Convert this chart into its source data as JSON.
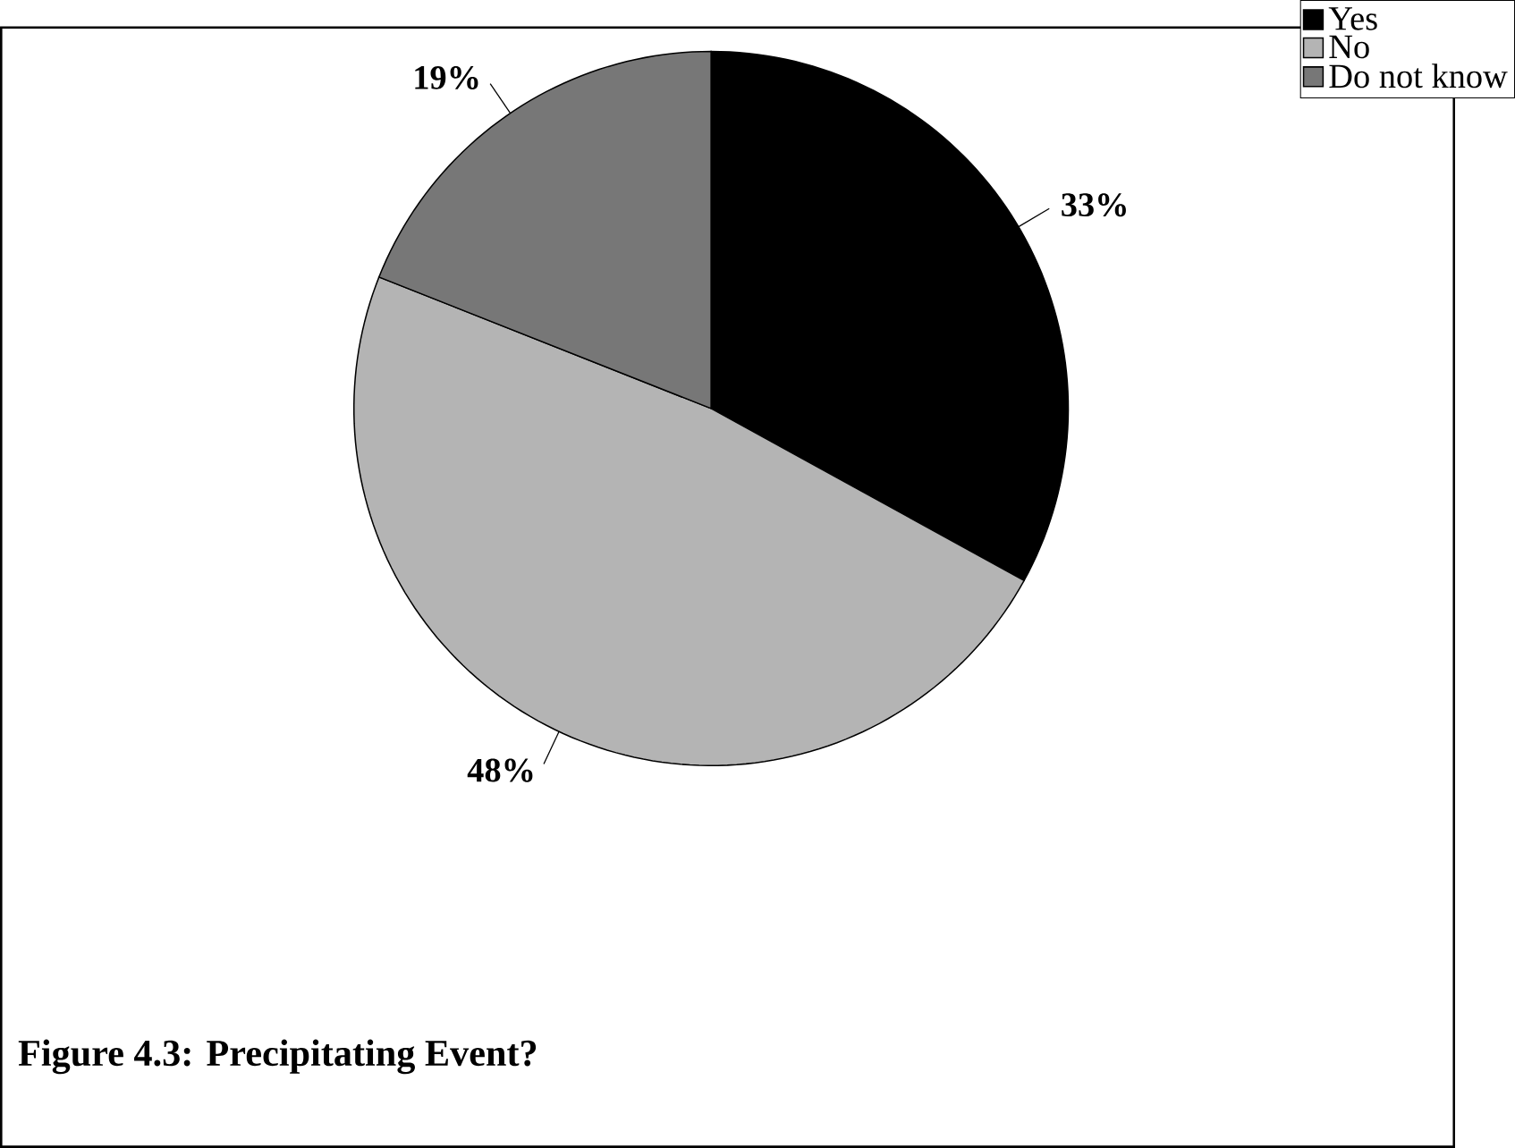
{
  "chart_data": {
    "type": "pie",
    "title": "Figure 4.3: Precipitating Event?",
    "categories": [
      "Yes",
      "No",
      "Do not know"
    ],
    "values": [
      33,
      48,
      19
    ],
    "colors": [
      "#000000",
      "#b4b4b4",
      "#777777"
    ],
    "value_labels": [
      "33%",
      "48%",
      "19%"
    ],
    "legend": "top right"
  }
}
